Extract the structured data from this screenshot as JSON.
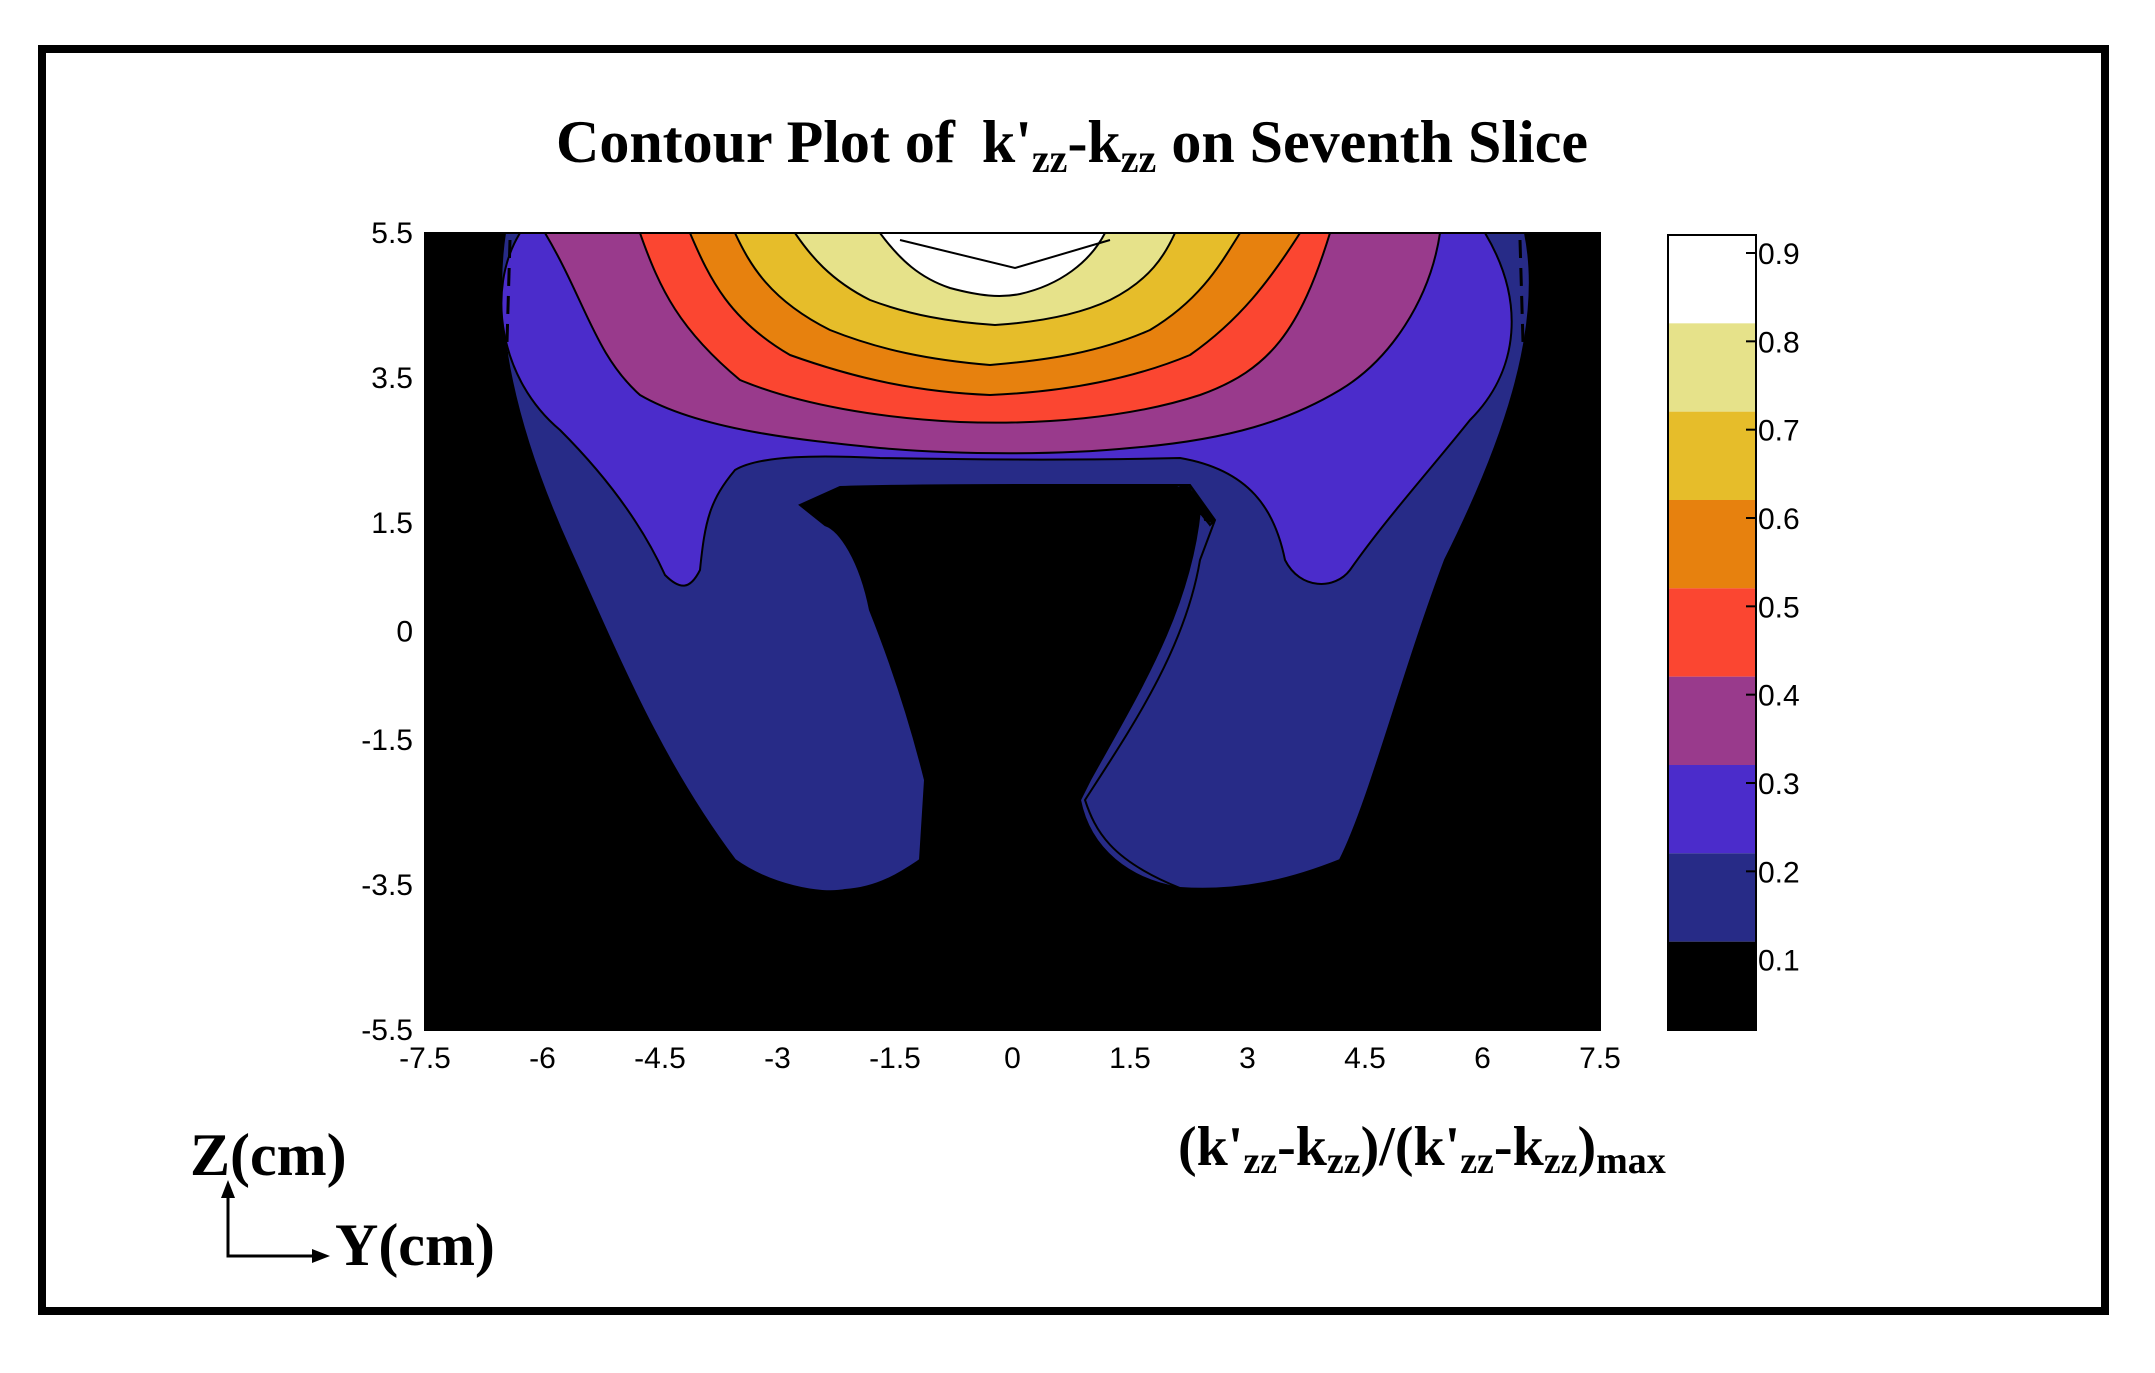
{
  "chart_data": {
    "type": "contour",
    "title": {
      "prefix": "Contour Plot of ",
      "k": "k'",
      "k_sub": "zz",
      "dash": "-k",
      "k2_sub": "zz",
      "suffix": " on Seventh Slice"
    },
    "x_ticks": [
      "-7.5",
      "-6",
      "-4.5",
      "-3",
      "-1.5",
      "0",
      "1.5",
      "3",
      "4.5",
      "6",
      "7.5"
    ],
    "y_ticks": [
      "5.5",
      "3.5",
      "1.5",
      "0",
      "-1.5",
      "-3.5",
      "-5.5"
    ],
    "x_tick_values": [
      -7.5,
      -6,
      -4.5,
      -3,
      -1.5,
      0,
      1.5,
      3,
      4.5,
      6,
      7.5
    ],
    "y_tick_values": [
      5.5,
      3.5,
      1.5,
      0,
      -1.5,
      -3.5,
      -5.5
    ],
    "xlim": [
      -7.5,
      7.5
    ],
    "ylim": [
      -5.5,
      5.5
    ],
    "colorbar": {
      "ticks": [
        "0.9",
        "0.8",
        "0.7",
        "0.6",
        "0.5",
        "0.4",
        "0.3",
        "0.2",
        "0.1"
      ],
      "levels": [
        0.9,
        0.8,
        0.7,
        0.6,
        0.5,
        0.4,
        0.3,
        0.2,
        0.1
      ],
      "band_colors": [
        "#ffffff",
        "#e6e28a",
        "#e6bd2a",
        "#e7810e",
        "#fb4631",
        "#993a8c",
        "#4b2ccb",
        "#272b87",
        "#000000"
      ]
    },
    "xlabel": "Y(cm)",
    "ylabel": "Z(cm)",
    "colorbar_label": {
      "open": "(k'",
      "sub1": "zz",
      "mid1": "-k",
      "sub2": "zz",
      "mid2": ")/(k'",
      "sub3": "zz",
      "mid3": "-k",
      "sub4": "zz",
      "close": ")",
      "sub5": "max"
    }
  }
}
